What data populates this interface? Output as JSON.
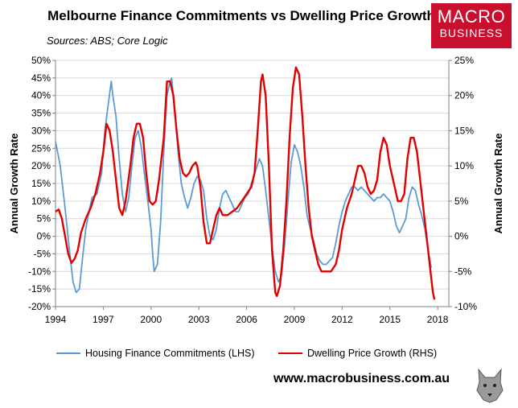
{
  "header": {
    "title": "Melbourne Finance Commitments vs Dwelling Price Growth",
    "sources": "Sources: ABS; Core Logic"
  },
  "logo": {
    "line1": "MACRO",
    "line2": "BUSINESS"
  },
  "footer": {
    "website": "www.macrobusiness.com.au"
  },
  "colors": {
    "lhs_series": "#5b9bd5",
    "rhs_series": "#e00000",
    "logo_bg": "#c8102e",
    "grid": "#d9d9d9"
  },
  "chart_data": {
    "type": "line",
    "xlabel": "",
    "ylabel_left": "Annual Growth Rate",
    "ylabel_right": "Annual Growth Rate",
    "xlim": [
      1994,
      2018.7
    ],
    "ylim_left": [
      -20,
      50
    ],
    "ylim_right": [
      -10,
      25
    ],
    "x_ticks": [
      "1994",
      "1997",
      "2000",
      "2003",
      "2006",
      "2009",
      "2012",
      "2015",
      "2018"
    ],
    "y_ticks_left": [
      "50%",
      "45%",
      "40%",
      "35%",
      "30%",
      "25%",
      "20%",
      "15%",
      "10%",
      "5%",
      "0%",
      "-5%",
      "-10%",
      "-15%",
      "-20%"
    ],
    "y_ticks_right": [
      "25%",
      "20%",
      "15%",
      "10%",
      "5%",
      "0%",
      "-5%",
      "-10%"
    ],
    "grid": "horizontal",
    "legend_position": "bottom",
    "series": [
      {
        "name": "Housing Finance Commitments (LHS)",
        "axis": "left",
        "points": [
          [
            1994.0,
            27
          ],
          [
            1994.3,
            20
          ],
          [
            1994.6,
            8
          ],
          [
            1994.9,
            -5
          ],
          [
            1995.1,
            -13
          ],
          [
            1995.3,
            -16
          ],
          [
            1995.5,
            -15
          ],
          [
            1995.7,
            -6
          ],
          [
            1995.9,
            2
          ],
          [
            1996.1,
            7
          ],
          [
            1996.3,
            11
          ],
          [
            1996.6,
            12
          ],
          [
            1996.9,
            18
          ],
          [
            1997.1,
            30
          ],
          [
            1997.3,
            37
          ],
          [
            1997.5,
            44
          ],
          [
            1997.6,
            40
          ],
          [
            1997.8,
            34
          ],
          [
            1998.0,
            22
          ],
          [
            1998.2,
            12
          ],
          [
            1998.4,
            7
          ],
          [
            1998.6,
            11
          ],
          [
            1998.8,
            20
          ],
          [
            1999.0,
            28
          ],
          [
            1999.2,
            30
          ],
          [
            1999.4,
            25
          ],
          [
            1999.6,
            17
          ],
          [
            1999.8,
            10
          ],
          [
            2000.0,
            2
          ],
          [
            2000.1,
            -5
          ],
          [
            2000.2,
            -10
          ],
          [
            2000.4,
            -8
          ],
          [
            2000.6,
            4
          ],
          [
            2000.8,
            24
          ],
          [
            2001.0,
            40
          ],
          [
            2001.2,
            44
          ],
          [
            2001.3,
            45
          ],
          [
            2001.5,
            35
          ],
          [
            2001.7,
            24
          ],
          [
            2001.9,
            15
          ],
          [
            2002.1,
            11
          ],
          [
            2002.3,
            8
          ],
          [
            2002.5,
            11
          ],
          [
            2002.7,
            15
          ],
          [
            2002.9,
            17
          ],
          [
            2003.1,
            16
          ],
          [
            2003.3,
            13
          ],
          [
            2003.5,
            5
          ],
          [
            2003.7,
            0
          ],
          [
            2003.9,
            -1
          ],
          [
            2004.1,
            2
          ],
          [
            2004.3,
            8
          ],
          [
            2004.5,
            12
          ],
          [
            2004.7,
            13
          ],
          [
            2004.9,
            11
          ],
          [
            2005.1,
            9
          ],
          [
            2005.3,
            7
          ],
          [
            2005.5,
            7
          ],
          [
            2005.7,
            9
          ],
          [
            2005.9,
            11
          ],
          [
            2006.1,
            12
          ],
          [
            2006.3,
            15
          ],
          [
            2006.6,
            19
          ],
          [
            2006.8,
            22
          ],
          [
            2007.0,
            20
          ],
          [
            2007.2,
            13
          ],
          [
            2007.4,
            5
          ],
          [
            2007.6,
            -3
          ],
          [
            2007.8,
            -10
          ],
          [
            2008.0,
            -13
          ],
          [
            2008.2,
            -11
          ],
          [
            2008.4,
            -2
          ],
          [
            2008.6,
            10
          ],
          [
            2008.8,
            21
          ],
          [
            2009.0,
            26
          ],
          [
            2009.2,
            24
          ],
          [
            2009.4,
            20
          ],
          [
            2009.6,
            14
          ],
          [
            2009.8,
            6
          ],
          [
            2010.0,
            2
          ],
          [
            2010.2,
            -1
          ],
          [
            2010.4,
            -5
          ],
          [
            2010.6,
            -7
          ],
          [
            2010.8,
            -8
          ],
          [
            2011.0,
            -8
          ],
          [
            2011.2,
            -7
          ],
          [
            2011.4,
            -6
          ],
          [
            2011.6,
            -2
          ],
          [
            2011.8,
            3
          ],
          [
            2012.0,
            7
          ],
          [
            2012.2,
            10
          ],
          [
            2012.4,
            12
          ],
          [
            2012.6,
            14
          ],
          [
            2012.8,
            14
          ],
          [
            2013.0,
            13
          ],
          [
            2013.2,
            14
          ],
          [
            2013.4,
            13
          ],
          [
            2013.6,
            12
          ],
          [
            2013.8,
            11
          ],
          [
            2014.0,
            10
          ],
          [
            2014.2,
            11
          ],
          [
            2014.4,
            11
          ],
          [
            2014.6,
            12
          ],
          [
            2014.8,
            11
          ],
          [
            2015.0,
            10
          ],
          [
            2015.2,
            7
          ],
          [
            2015.4,
            3
          ],
          [
            2015.6,
            1
          ],
          [
            2015.8,
            3
          ],
          [
            2016.0,
            5
          ],
          [
            2016.2,
            11
          ],
          [
            2016.4,
            14
          ],
          [
            2016.6,
            13
          ],
          [
            2016.8,
            9
          ],
          [
            2017.0,
            6
          ],
          [
            2017.2,
            2
          ],
          [
            2017.4,
            -4
          ],
          [
            2017.6,
            -9
          ]
        ]
      },
      {
        "name": "Dwelling Price Growth (RHS)",
        "axis": "right",
        "points": [
          [
            1994.0,
            3.5
          ],
          [
            1994.2,
            3.8
          ],
          [
            1994.4,
            2.5
          ],
          [
            1994.6,
            0
          ],
          [
            1994.8,
            -2.5
          ],
          [
            1995.0,
            -3.8
          ],
          [
            1995.2,
            -3.2
          ],
          [
            1995.4,
            -2
          ],
          [
            1995.6,
            0.5
          ],
          [
            1995.9,
            2.5
          ],
          [
            1996.2,
            4
          ],
          [
            1996.5,
            6
          ],
          [
            1996.8,
            9
          ],
          [
            1997.0,
            12
          ],
          [
            1997.2,
            16
          ],
          [
            1997.4,
            15
          ],
          [
            1997.6,
            12
          ],
          [
            1997.8,
            8
          ],
          [
            1998.0,
            4
          ],
          [
            1998.2,
            3
          ],
          [
            1998.4,
            5
          ],
          [
            1998.7,
            10
          ],
          [
            1998.9,
            14
          ],
          [
            1999.1,
            16
          ],
          [
            1999.3,
            16
          ],
          [
            1999.5,
            14
          ],
          [
            1999.7,
            9
          ],
          [
            1999.9,
            5
          ],
          [
            2000.1,
            4.5
          ],
          [
            2000.3,
            5
          ],
          [
            2000.5,
            8
          ],
          [
            2000.8,
            14
          ],
          [
            2001.0,
            22
          ],
          [
            2001.2,
            22
          ],
          [
            2001.4,
            20
          ],
          [
            2001.6,
            15
          ],
          [
            2001.8,
            11
          ],
          [
            2002.0,
            9
          ],
          [
            2002.2,
            8.5
          ],
          [
            2002.4,
            9
          ],
          [
            2002.6,
            10
          ],
          [
            2002.8,
            10.5
          ],
          [
            2002.9,
            10
          ],
          [
            2003.1,
            7
          ],
          [
            2003.3,
            2
          ],
          [
            2003.5,
            -1
          ],
          [
            2003.7,
            -1
          ],
          [
            2003.9,
            1
          ],
          [
            2004.1,
            3
          ],
          [
            2004.3,
            4
          ],
          [
            2004.5,
            3
          ],
          [
            2004.8,
            3
          ],
          [
            2005.1,
            3.5
          ],
          [
            2005.4,
            4
          ],
          [
            2005.7,
            5
          ],
          [
            2006.0,
            6
          ],
          [
            2006.3,
            7
          ],
          [
            2006.5,
            9
          ],
          [
            2006.7,
            15
          ],
          [
            2006.9,
            22
          ],
          [
            2007.0,
            23
          ],
          [
            2007.2,
            20
          ],
          [
            2007.4,
            10
          ],
          [
            2007.6,
            -2
          ],
          [
            2007.8,
            -8
          ],
          [
            2007.9,
            -8.5
          ],
          [
            2008.1,
            -7
          ],
          [
            2008.3,
            -2
          ],
          [
            2008.5,
            5
          ],
          [
            2008.7,
            14
          ],
          [
            2008.9,
            21
          ],
          [
            2009.1,
            24
          ],
          [
            2009.3,
            23
          ],
          [
            2009.5,
            17
          ],
          [
            2009.7,
            10
          ],
          [
            2009.9,
            4
          ],
          [
            2010.1,
            0
          ],
          [
            2010.3,
            -2
          ],
          [
            2010.5,
            -4
          ],
          [
            2010.7,
            -5
          ],
          [
            2011.0,
            -5
          ],
          [
            2011.3,
            -5
          ],
          [
            2011.6,
            -4
          ],
          [
            2011.8,
            -2
          ],
          [
            2012.0,
            1
          ],
          [
            2012.3,
            4
          ],
          [
            2012.6,
            6
          ],
          [
            2012.8,
            8
          ],
          [
            2013.0,
            10
          ],
          [
            2013.2,
            10
          ],
          [
            2013.4,
            9
          ],
          [
            2013.6,
            7
          ],
          [
            2013.8,
            6
          ],
          [
            2014.0,
            6.5
          ],
          [
            2014.2,
            8
          ],
          [
            2014.4,
            12
          ],
          [
            2014.6,
            14
          ],
          [
            2014.8,
            13
          ],
          [
            2015.0,
            10
          ],
          [
            2015.3,
            7
          ],
          [
            2015.5,
            5
          ],
          [
            2015.7,
            5
          ],
          [
            2015.9,
            6
          ],
          [
            2016.1,
            11
          ],
          [
            2016.3,
            14
          ],
          [
            2016.5,
            14
          ],
          [
            2016.7,
            12
          ],
          [
            2016.9,
            8
          ],
          [
            2017.1,
            4
          ],
          [
            2017.3,
            0
          ],
          [
            2017.5,
            -4
          ],
          [
            2017.7,
            -8
          ],
          [
            2017.8,
            -9
          ]
        ]
      }
    ]
  }
}
